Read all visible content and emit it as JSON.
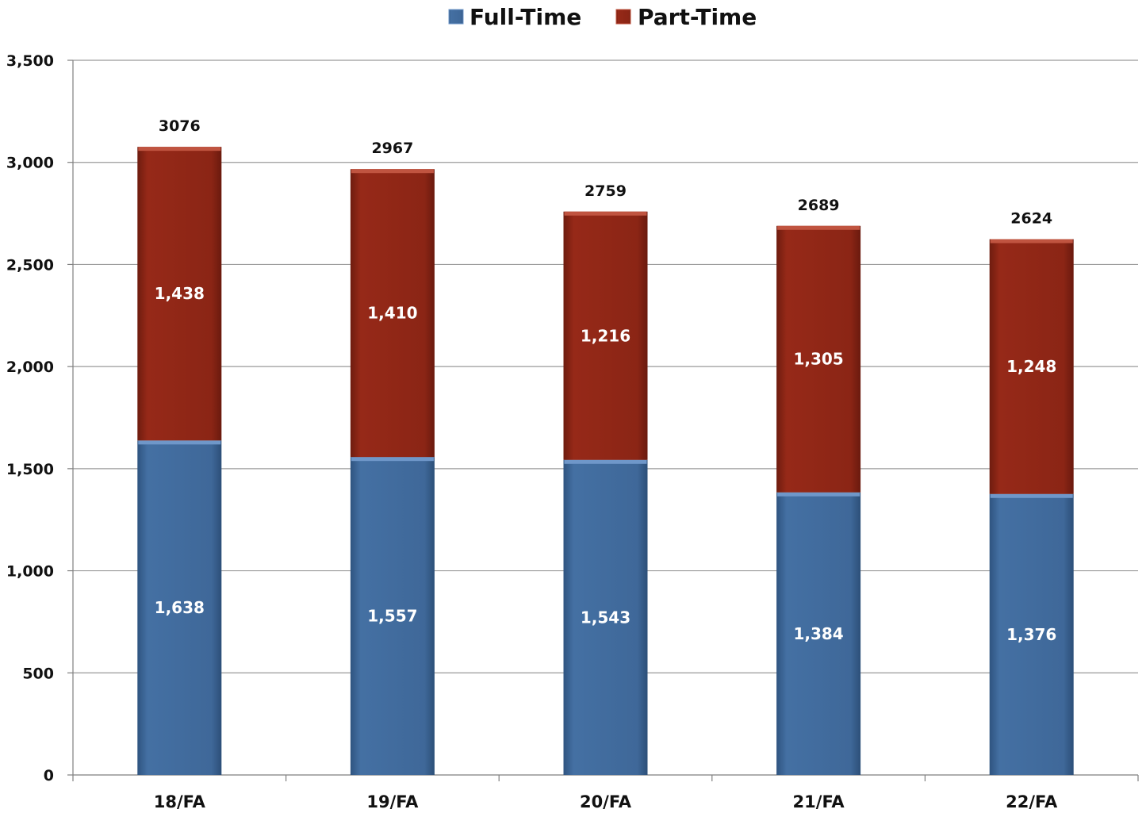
{
  "chart_data": {
    "type": "bar",
    "stacked": true,
    "title": "",
    "xlabel": "",
    "ylabel": "",
    "categories": [
      "18/FA",
      "19/FA",
      "20/FA",
      "21/FA",
      "22/FA"
    ],
    "series": [
      {
        "name": "Full-Time",
        "color": "#3f6899",
        "values": [
          1638,
          1557,
          1543,
          1384,
          1376
        ],
        "labels": [
          "1,638",
          "1,557",
          "1,543",
          "1,384",
          "1,376"
        ]
      },
      {
        "name": "Part-Time",
        "color": "#8b2515",
        "values": [
          1438,
          1410,
          1216,
          1305,
          1248
        ],
        "labels": [
          "1,438",
          "1,410",
          "1,216",
          "1,305",
          "1,248"
        ]
      }
    ],
    "totals": [
      3076,
      2967,
      2759,
      2689,
      2624
    ],
    "total_labels": [
      "3076",
      "2967",
      "2759",
      "2689",
      "2624"
    ],
    "ylim": [
      0,
      3500
    ],
    "yticks": [
      0,
      500,
      1000,
      1500,
      2000,
      2500,
      3000,
      3500
    ],
    "ytick_labels": [
      "0",
      "500",
      "1,000",
      "1,500",
      "2,000",
      "2,500",
      "3,000",
      "3,500"
    ],
    "grid": true,
    "legend_position": "top-center"
  }
}
